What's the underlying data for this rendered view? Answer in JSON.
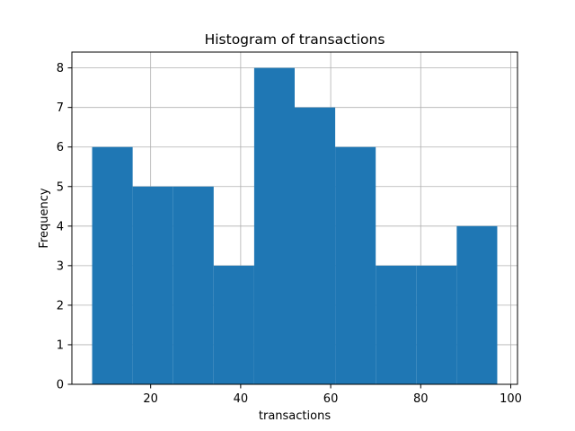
{
  "chart_data": {
    "type": "bar",
    "title": "Histogram of transactions",
    "xlabel": "transactions",
    "ylabel": "Frequency",
    "bins": [
      {
        "start": 7,
        "end": 16,
        "count": 6
      },
      {
        "start": 16,
        "end": 25,
        "count": 5
      },
      {
        "start": 25,
        "end": 34,
        "count": 5
      },
      {
        "start": 34,
        "end": 43,
        "count": 3
      },
      {
        "start": 43,
        "end": 52,
        "count": 8
      },
      {
        "start": 52,
        "end": 61,
        "count": 7
      },
      {
        "start": 61,
        "end": 70,
        "count": 6
      },
      {
        "start": 70,
        "end": 79,
        "count": 3
      },
      {
        "start": 79,
        "end": 88,
        "count": 3
      },
      {
        "start": 88,
        "end": 97,
        "count": 4
      }
    ],
    "xlim": [
      2.5,
      101.5
    ],
    "ylim": [
      0,
      8.4
    ],
    "xticks": [
      20,
      40,
      60,
      80,
      100
    ],
    "yticks": [
      0,
      1,
      2,
      3,
      4,
      5,
      6,
      7,
      8
    ],
    "grid": true,
    "bar_color": "#1f77b4",
    "grid_color": "#b0b0b0"
  }
}
